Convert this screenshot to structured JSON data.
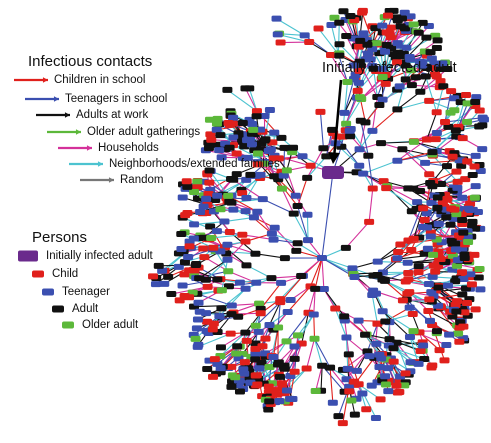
{
  "contacts": {
    "title": "Infectious contacts",
    "items": [
      {
        "label": "Children in school",
        "color": "#e0201c"
      },
      {
        "label": "Teenagers in school",
        "color": "#3b4fb0"
      },
      {
        "label": "Adults at work",
        "color": "#111111"
      },
      {
        "label": "Older adult gatherings",
        "color": "#5cb83a"
      },
      {
        "label": "Households",
        "color": "#d4319a"
      },
      {
        "label": "Neighborhoods/extended families",
        "color": "#4cc3d0"
      },
      {
        "label": "Random",
        "color": "#777777"
      }
    ]
  },
  "persons": {
    "title": "Persons",
    "items": [
      {
        "label": "Initially infected adult",
        "color": "#6a2a8c"
      },
      {
        "label": "Child",
        "color": "#e0201c"
      },
      {
        "label": "Teenager",
        "color": "#3b4fb0"
      },
      {
        "label": "Adult",
        "color": "#111111"
      },
      {
        "label": "Older adult",
        "color": "#5cb83a"
      }
    ]
  },
  "annotation": "Initially infected adult"
}
